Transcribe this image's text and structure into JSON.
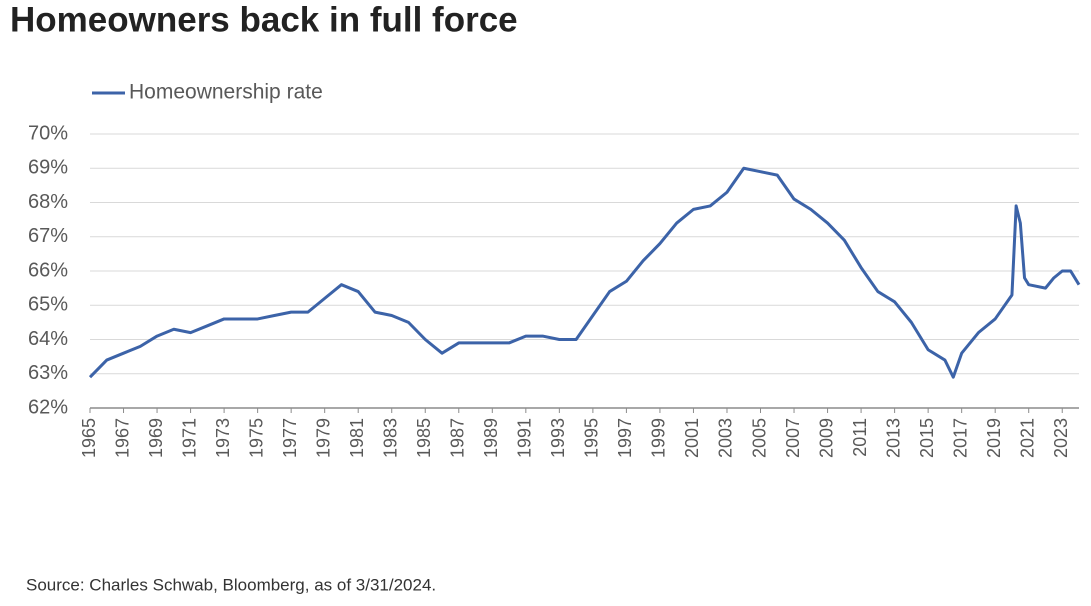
{
  "chart_data": {
    "type": "line",
    "title": "Homeowners back in full force",
    "source": "Source: Charles Schwab, Bloomberg, as of 3/31/2024.",
    "x": [
      1965,
      1966,
      1967,
      1968,
      1969,
      1970,
      1971,
      1972,
      1973,
      1974,
      1975,
      1976,
      1977,
      1978,
      1979,
      1980,
      1981,
      1982,
      1983,
      1984,
      1985,
      1986,
      1987,
      1988,
      1989,
      1990,
      1991,
      1992,
      1993,
      1994,
      1995,
      1996,
      1997,
      1998,
      1999,
      2000,
      2001,
      2002,
      2003,
      2004,
      2005,
      2006,
      2007,
      2008,
      2009,
      2010,
      2011,
      2012,
      2013,
      2014,
      2015,
      2016,
      2016.5,
      2017,
      2018,
      2019,
      2020,
      2020.25,
      2020.5,
      2020.75,
      2021,
      2022,
      2022.5,
      2023,
      2023.5,
      2024
    ],
    "series": [
      {
        "name": "Homeownership rate",
        "color": "#3c63a8",
        "values": [
          62.9,
          63.4,
          63.6,
          63.8,
          64.1,
          64.3,
          64.2,
          64.4,
          64.6,
          64.6,
          64.6,
          64.7,
          64.8,
          64.8,
          65.2,
          65.6,
          65.4,
          64.8,
          64.7,
          64.5,
          64.0,
          63.6,
          63.9,
          63.9,
          63.9,
          63.9,
          64.1,
          64.1,
          64.0,
          64.0,
          64.7,
          65.4,
          65.7,
          66.3,
          66.8,
          67.4,
          67.8,
          67.9,
          68.3,
          69.0,
          68.9,
          68.8,
          68.1,
          67.8,
          67.4,
          66.9,
          66.1,
          65.4,
          65.1,
          64.5,
          63.7,
          63.4,
          62.9,
          63.6,
          64.2,
          64.6,
          65.3,
          67.9,
          67.4,
          65.8,
          65.6,
          65.5,
          65.8,
          66.0,
          66.0,
          65.6
        ]
      }
    ],
    "xlim": [
      1965,
      2024
    ],
    "xticks": [
      1965,
      1967,
      1969,
      1971,
      1973,
      1975,
      1977,
      1979,
      1981,
      1983,
      1985,
      1987,
      1989,
      1991,
      1993,
      1995,
      1997,
      1999,
      2001,
      2003,
      2005,
      2007,
      2009,
      2011,
      2013,
      2015,
      2017,
      2019,
      2021,
      2023
    ],
    "ylim": [
      62,
      70
    ],
    "yticks": [
      {
        "value": 62,
        "label": "62%"
      },
      {
        "value": 63,
        "label": "63%"
      },
      {
        "value": 64,
        "label": "64%"
      },
      {
        "value": 65,
        "label": "65%"
      },
      {
        "value": 66,
        "label": "66%"
      },
      {
        "value": 67,
        "label": "67%"
      },
      {
        "value": 68,
        "label": "68%"
      },
      {
        "value": 69,
        "label": "69%"
      },
      {
        "value": 70,
        "label": "70%"
      }
    ],
    "grid": true,
    "legend": "top-left"
  }
}
